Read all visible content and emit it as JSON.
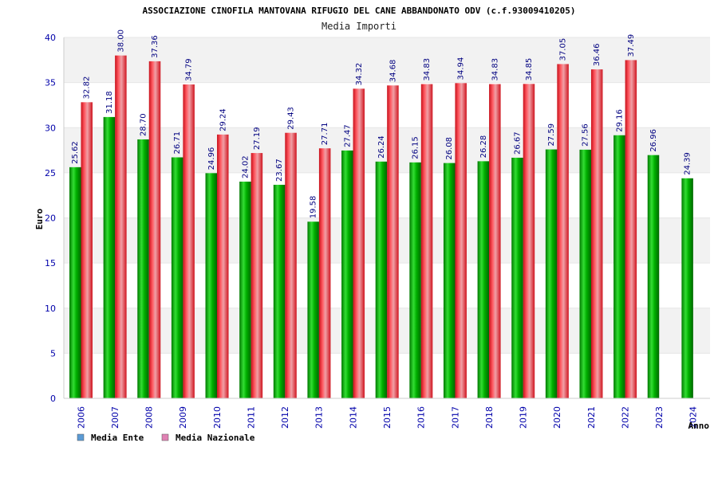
{
  "chart_data": {
    "type": "bar",
    "title": "ASSOCIAZIONE CINOFILA MANTOVANA RIFUGIO DEL CANE ABBANDONATO ODV (c.f.93009410205)",
    "subtitle": "Media Importi",
    "xlabel": "Anno",
    "ylabel": "Euro",
    "ylim": [
      0,
      40
    ],
    "yticks": [
      0,
      5,
      10,
      15,
      20,
      25,
      30,
      35,
      40
    ],
    "grid": true,
    "legend_position": "bottom-left",
    "categories": [
      "2006",
      "2007",
      "2008",
      "2009",
      "2010",
      "2011",
      "2012",
      "2013",
      "2014",
      "2015",
      "2016",
      "2017",
      "2018",
      "2019",
      "2020",
      "2021",
      "2022",
      "2023",
      "2024"
    ],
    "series": [
      {
        "name": "Media Ente",
        "color": "#00a000",
        "legend_color": "#5b9bd5",
        "values": [
          25.62,
          31.18,
          28.7,
          26.71,
          24.96,
          24.02,
          23.67,
          19.58,
          27.47,
          26.24,
          26.15,
          26.08,
          26.28,
          26.67,
          27.59,
          27.56,
          29.16,
          26.96,
          24.39
        ],
        "labels": [
          "25.62",
          "31.18",
          "28.70",
          "26.71",
          "24.96",
          "24.02",
          "23.67",
          "19.58",
          "27.47",
          "26.24",
          "26.15",
          "26.08",
          "26.28",
          "26.67",
          "27.59",
          "27.56",
          "29.16",
          "26.96",
          "24.39"
        ]
      },
      {
        "name": "Media Nazionale",
        "color": "#e8202a",
        "legend_color": "#e082b4",
        "values": [
          32.82,
          38.0,
          37.36,
          34.79,
          29.24,
          27.19,
          29.43,
          27.71,
          34.32,
          34.68,
          34.83,
          34.94,
          34.83,
          34.85,
          37.05,
          36.46,
          37.49,
          null,
          null
        ],
        "labels": [
          "32.82",
          "38.00",
          "37.36",
          "34.79",
          "29.24",
          "27.19",
          "29.43",
          "27.71",
          "34.32",
          "34.68",
          "34.83",
          "34.94",
          "34.83",
          "34.85",
          "37.05",
          "36.46",
          "37.49",
          null,
          null
        ]
      }
    ]
  }
}
